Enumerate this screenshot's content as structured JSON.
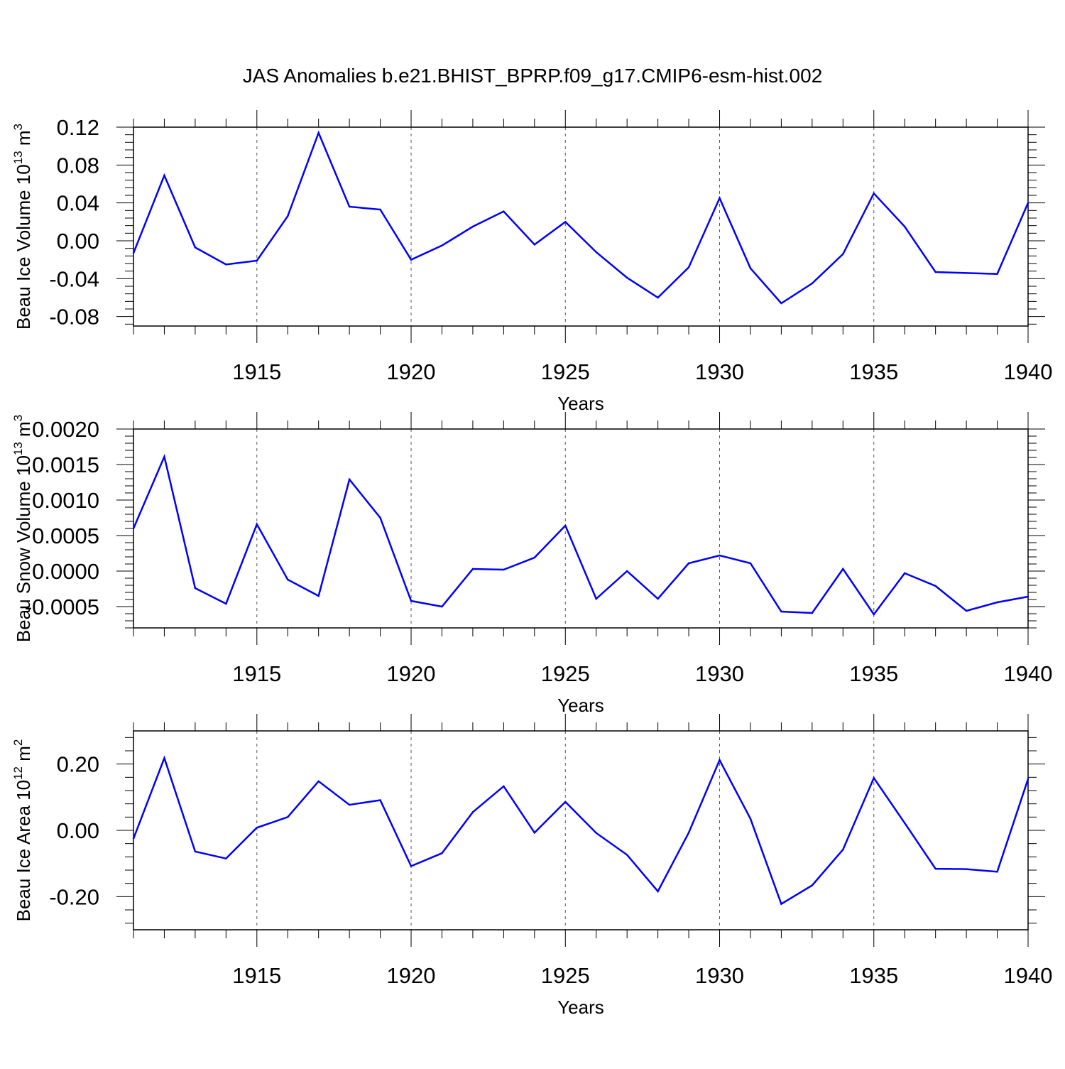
{
  "title": "JAS Anomalies b.e21.BHIST_BPRP.f09_g17.CMIP6-esm-hist.002",
  "colors": {
    "line": "#0000ff",
    "axes": "#000000",
    "grid": "#555555"
  },
  "chart_data": [
    {
      "type": "line",
      "ylabel": "Beau Ice Volume",
      "ylabel_unit_base": "10",
      "ylabel_unit_exp": "13",
      "ylabel_unit_tail": "m",
      "ylabel_unit_tail_exp": "3",
      "xlabel": "Years",
      "xlim": [
        1911,
        1940
      ],
      "ylim": [
        -0.09,
        0.12
      ],
      "yticks": [
        -0.08,
        -0.04,
        0.0,
        0.04,
        0.08,
        0.12
      ],
      "yticklabels": [
        "-0.08",
        "-0.04",
        "0.00",
        "0.04",
        "0.08",
        "0.12"
      ],
      "ymin_step": 0.008,
      "xticks": [
        1915,
        1920,
        1925,
        1930,
        1935,
        1940
      ],
      "xticklabels": [
        "1915",
        "1920",
        "1925",
        "1930",
        "1935",
        "1940"
      ],
      "x": [
        1911,
        1912,
        1913,
        1914,
        1915,
        1916,
        1917,
        1918,
        1919,
        1920,
        1921,
        1922,
        1923,
        1924,
        1925,
        1926,
        1927,
        1928,
        1929,
        1930,
        1931,
        1932,
        1933,
        1934,
        1935,
        1936,
        1937,
        1938,
        1939,
        1940
      ],
      "values": [
        -0.013,
        0.069,
        -0.007,
        -0.025,
        -0.021,
        0.026,
        0.114,
        0.036,
        0.033,
        -0.02,
        -0.005,
        0.015,
        0.031,
        -0.004,
        0.02,
        -0.012,
        -0.039,
        -0.06,
        -0.028,
        0.045,
        -0.029,
        -0.066,
        -0.045,
        -0.014,
        0.05,
        0.015,
        -0.033,
        -0.034,
        -0.035,
        0.04
      ]
    },
    {
      "type": "line",
      "ylabel": "Beau Snow Volume",
      "ylabel_unit_base": "10",
      "ylabel_unit_exp": "13",
      "ylabel_unit_tail": "m",
      "ylabel_unit_tail_exp": "3",
      "xlabel": "Years",
      "xlim": [
        1911,
        1940
      ],
      "ylim": [
        -0.0008,
        0.002
      ],
      "yticks": [
        -0.0005,
        0.0,
        0.0005,
        0.001,
        0.0015,
        0.002
      ],
      "yticklabels": [
        "-0.0005",
        "0.0000",
        "0.0005",
        "0.0010",
        "0.0015",
        "0.0020"
      ],
      "ymin_step": 0.0001,
      "xticks": [
        1915,
        1920,
        1925,
        1930,
        1935,
        1940
      ],
      "xticklabels": [
        "1915",
        "1920",
        "1925",
        "1930",
        "1935",
        "1940"
      ],
      "x": [
        1911,
        1912,
        1913,
        1914,
        1915,
        1916,
        1917,
        1918,
        1919,
        1920,
        1921,
        1922,
        1923,
        1924,
        1925,
        1926,
        1927,
        1928,
        1929,
        1930,
        1931,
        1932,
        1933,
        1934,
        1935,
        1936,
        1937,
        1938,
        1939,
        1940
      ],
      "values": [
        0.0006,
        0.00161,
        -0.00024,
        -0.00046,
        0.00066,
        -0.00012,
        -0.00035,
        0.00129,
        0.00075,
        -0.00042,
        -0.0005,
        3e-05,
        2e-05,
        0.00019,
        0.00064,
        -0.00039,
        0.0,
        -0.00039,
        0.00011,
        0.00022,
        0.00011,
        -0.00057,
        -0.00059,
        3e-05,
        -0.00061,
        -3e-05,
        -0.00021,
        -0.00056,
        -0.00044,
        -0.00036
      ]
    },
    {
      "type": "line",
      "ylabel": "Beau Ice Area",
      "ylabel_unit_base": "10",
      "ylabel_unit_exp": "12",
      "ylabel_unit_tail": "m",
      "ylabel_unit_tail_exp": "2",
      "xlabel": "Years",
      "xlim": [
        1911,
        1940
      ],
      "ylim": [
        -0.3,
        0.3
      ],
      "yticks": [
        -0.2,
        0.0,
        0.2
      ],
      "yticklabels": [
        "-0.20",
        "0.00",
        "0.20"
      ],
      "ymin_step": 0.04,
      "xticks": [
        1915,
        1920,
        1925,
        1930,
        1935,
        1940
      ],
      "xticklabels": [
        "1915",
        "1920",
        "1925",
        "1930",
        "1935",
        "1940"
      ],
      "x": [
        1911,
        1912,
        1913,
        1914,
        1915,
        1916,
        1917,
        1918,
        1919,
        1920,
        1921,
        1922,
        1923,
        1924,
        1925,
        1926,
        1927,
        1928,
        1929,
        1930,
        1931,
        1932,
        1933,
        1934,
        1935,
        1936,
        1937,
        1938,
        1939,
        1940
      ],
      "values": [
        -0.025,
        0.218,
        -0.064,
        -0.085,
        0.008,
        0.04,
        0.148,
        0.077,
        0.091,
        -0.108,
        -0.069,
        0.055,
        0.133,
        -0.007,
        0.086,
        -0.008,
        -0.074,
        -0.184,
        -0.007,
        0.212,
        0.035,
        -0.222,
        -0.166,
        -0.058,
        0.158,
        0.022,
        -0.116,
        -0.117,
        -0.125,
        0.155
      ]
    }
  ]
}
